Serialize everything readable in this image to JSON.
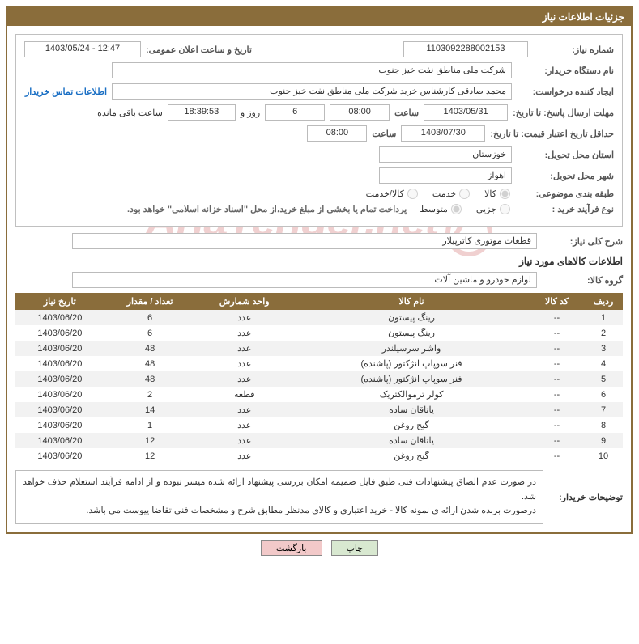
{
  "title": "جزئیات اطلاعات نیاز",
  "fields": {
    "need_number_label": "شماره نیاز:",
    "need_number": "1103092288002153",
    "announce_label": "تاریخ و ساعت اعلان عمومی:",
    "announce_value": "1403/05/24 - 12:47",
    "buyer_org_label": "نام دستگاه خریدار:",
    "buyer_org": "شرکت ملی مناطق نفت خیز جنوب",
    "requester_label": "ایجاد کننده درخواست:",
    "requester": "محمد صادقی  کارشناس خرید  شرکت ملی مناطق نفت خیز جنوب",
    "contact_link": "اطلاعات تماس خریدار",
    "deadline_label": "مهلت ارسال پاسخ: تا تاریخ:",
    "deadline_date": "1403/05/31",
    "hour_label": "ساعت",
    "deadline_hour": "08:00",
    "days_value": "6",
    "days_word": "روز و ",
    "remain_time": "18:39:53",
    "remain_suffix": "ساعت باقی مانده",
    "validity_label": "حداقل تاریخ اعتبار قیمت: تا تاریخ:",
    "validity_date": "1403/07/30",
    "validity_hour": "08:00",
    "province_label": "استان محل تحویل:",
    "province": "خوزستان",
    "city_label": "شهر محل تحویل:",
    "city": "اهواز",
    "category_label": "طبقه بندی موضوعی:",
    "radio_goods": "کالا",
    "radio_service": "خدمت",
    "radio_goods_service": "کالا/خدمت",
    "proc_type_label": "نوع فرآیند خرید :",
    "radio_partial": "جزیی",
    "radio_medium": "متوسط",
    "proc_note": "پرداخت تمام یا بخشی از مبلغ خرید،از محل \"اسناد خزانه اسلامی\" خواهد بود.",
    "desc_label": "شرح کلی نیاز:",
    "desc": "قطعات موتوری کاترپیلار",
    "goods_info_heading": "اطلاعات کالاهای مورد نیاز",
    "group_label": "گروه کالا:",
    "group": "لوازم خودرو و ماشین آلات",
    "buyer_notes_label": "توضیحات خریدار:",
    "buyer_notes": "در صورت عدم الصاق پیشنهادات فنی طبق فایل ضمیمه امکان بررسی پیشنهاد ارائه شده میسر نبوده و از ادامه فرآیند استعلام حذف خواهد شد.\nدرصورت برنده شدن ارائه ی نمونه کالا - خرید اعتباری و کالای مدنظر مطابق شرح و مشخصات فنی تقاضا پیوست می باشد."
  },
  "table": {
    "headers": {
      "idx": "ردیف",
      "code": "کد کالا",
      "name": "نام کالا",
      "unit": "واحد شمارش",
      "qty": "تعداد / مقدار",
      "date": "تاریخ نیاز"
    },
    "rows": [
      {
        "idx": "1",
        "code": "--",
        "name": "رینگ پیستون",
        "unit": "عدد",
        "qty": "6",
        "date": "1403/06/20"
      },
      {
        "idx": "2",
        "code": "--",
        "name": "رینگ پیستون",
        "unit": "عدد",
        "qty": "6",
        "date": "1403/06/20"
      },
      {
        "idx": "3",
        "code": "--",
        "name": "واشر سرسیلندر",
        "unit": "عدد",
        "qty": "48",
        "date": "1403/06/20"
      },
      {
        "idx": "4",
        "code": "--",
        "name": "فنر سوپاپ انژکتور (پاشنده)",
        "unit": "عدد",
        "qty": "48",
        "date": "1403/06/20"
      },
      {
        "idx": "5",
        "code": "--",
        "name": "فنر سوپاپ انژکتور (پاشنده)",
        "unit": "عدد",
        "qty": "48",
        "date": "1403/06/20"
      },
      {
        "idx": "6",
        "code": "--",
        "name": "کولر ترموالکتریک",
        "unit": "قطعه",
        "qty": "2",
        "date": "1403/06/20"
      },
      {
        "idx": "7",
        "code": "--",
        "name": "یاتاقان ساده",
        "unit": "عدد",
        "qty": "14",
        "date": "1403/06/20"
      },
      {
        "idx": "8",
        "code": "--",
        "name": "گیج روغن",
        "unit": "عدد",
        "qty": "1",
        "date": "1403/06/20"
      },
      {
        "idx": "9",
        "code": "--",
        "name": "یاتاقان ساده",
        "unit": "عدد",
        "qty": "12",
        "date": "1403/06/20"
      },
      {
        "idx": "10",
        "code": "--",
        "name": "گیج روغن",
        "unit": "عدد",
        "qty": "12",
        "date": "1403/06/20"
      }
    ]
  },
  "buttons": {
    "print": "چاپ",
    "back": "بازگشت"
  },
  "watermark": "AriaTender.net",
  "colors": {
    "accent": "#8a6d3b",
    "border": "#bbbbbb",
    "link": "#1a6fc4",
    "row_alt": "#f2f2f2",
    "btn_print": "#d8e8d0",
    "btn_back": "#f2c9c9",
    "wm": "#b00000"
  }
}
